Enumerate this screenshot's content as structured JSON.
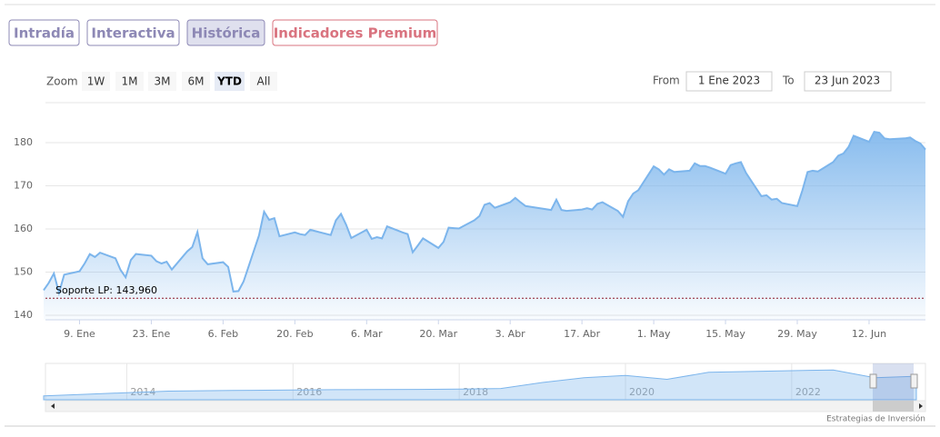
{
  "tabs": [
    "Intradía",
    "Interactiva",
    "Histórica",
    "Indicadores Premium"
  ],
  "active_tab": 2,
  "zoom": {
    "label": "Zoom",
    "buttons": [
      "1W",
      "1M",
      "3M",
      "6M",
      "YTD",
      "All"
    ],
    "selected": 4
  },
  "range": {
    "from_label": "From",
    "from": "1 Ene 2023",
    "to_label": "To",
    "to": "23 Jun 2023"
  },
  "credit": "Estrategias de Inversión",
  "chart_data": {
    "type": "area",
    "color": "#7cb5ec",
    "grid": true,
    "x": [
      "2023-01-02",
      "2023-01-03",
      "2023-01-04",
      "2023-01-05",
      "2023-01-06",
      "2023-01-09",
      "2023-01-10",
      "2023-01-11",
      "2023-01-12",
      "2023-01-13",
      "2023-01-16",
      "2023-01-17",
      "2023-01-18",
      "2023-01-19",
      "2023-01-20",
      "2023-01-23",
      "2023-01-24",
      "2023-01-25",
      "2023-01-26",
      "2023-01-27",
      "2023-01-30",
      "2023-01-31",
      "2023-02-01",
      "2023-02-02",
      "2023-02-03",
      "2023-02-06",
      "2023-02-07",
      "2023-02-08",
      "2023-02-09",
      "2023-02-10",
      "2023-02-13",
      "2023-02-14",
      "2023-02-15",
      "2023-02-16",
      "2023-02-17",
      "2023-02-20",
      "2023-02-21",
      "2023-02-22",
      "2023-02-23",
      "2023-02-24",
      "2023-02-27",
      "2023-02-28",
      "2023-03-01",
      "2023-03-02",
      "2023-03-03",
      "2023-03-06",
      "2023-03-07",
      "2023-03-08",
      "2023-03-09",
      "2023-03-10",
      "2023-03-13",
      "2023-03-14",
      "2023-03-15",
      "2023-03-16",
      "2023-03-17",
      "2023-03-20",
      "2023-03-21",
      "2023-03-22",
      "2023-03-23",
      "2023-03-24",
      "2023-03-27",
      "2023-03-28",
      "2023-03-29",
      "2023-03-30",
      "2023-03-31",
      "2023-04-03",
      "2023-04-04",
      "2023-04-05",
      "2023-04-06",
      "2023-04-11",
      "2023-04-12",
      "2023-04-13",
      "2023-04-14",
      "2023-04-17",
      "2023-04-18",
      "2023-04-19",
      "2023-04-20",
      "2023-04-21",
      "2023-04-24",
      "2023-04-25",
      "2023-04-26",
      "2023-04-27",
      "2023-04-28",
      "2023-05-01",
      "2023-05-02",
      "2023-05-03",
      "2023-05-04",
      "2023-05-05",
      "2023-05-08",
      "2023-05-09",
      "2023-05-10",
      "2023-05-11",
      "2023-05-12",
      "2023-05-15",
      "2023-05-16",
      "2023-05-17",
      "2023-05-18",
      "2023-05-19",
      "2023-05-22",
      "2023-05-23",
      "2023-05-24",
      "2023-05-25",
      "2023-05-26",
      "2023-05-29",
      "2023-05-30",
      "2023-05-31",
      "2023-06-01",
      "2023-06-02",
      "2023-06-05",
      "2023-06-06",
      "2023-06-07",
      "2023-06-08",
      "2023-06-09",
      "2023-06-12",
      "2023-06-13",
      "2023-06-14",
      "2023-06-15",
      "2023-06-16",
      "2023-06-19",
      "2023-06-20",
      "2023-06-21",
      "2023-06-22",
      "2023-06-23"
    ],
    "values": [
      145.8,
      147.5,
      149.7,
      145.2,
      149.4,
      150.2,
      152,
      154.2,
      153.5,
      154.5,
      153.2,
      150.5,
      148.8,
      152.8,
      154.2,
      153.8,
      152.5,
      152,
      152.4,
      150.6,
      154.8,
      155.8,
      159.3,
      153.2,
      151.8,
      152.3,
      151.2,
      145.5,
      145.6,
      147.8,
      158.5,
      164,
      162.1,
      162.5,
      158.3,
      159.2,
      158.8,
      158.6,
      159.8,
      159.5,
      158.6,
      162,
      163.5,
      161,
      157.9,
      159.8,
      157.7,
      158.1,
      157.8,
      160.6,
      159.2,
      158.8,
      154.6,
      156.2,
      157.8,
      155.6,
      157,
      160.3,
      160.2,
      160.1,
      162,
      163,
      165.6,
      166,
      164.9,
      166.2,
      167.2,
      166.2,
      165.3,
      164.4,
      166.8,
      164.4,
      164.2,
      164.5,
      164.8,
      164.5,
      165.8,
      166.2,
      164.2,
      162.8,
      166.4,
      168.2,
      169,
      174.5,
      173.8,
      172.6,
      173.8,
      173.2,
      173.5,
      175.2,
      174.6,
      174.6,
      174.2,
      172.8,
      174.8,
      175.2,
      175.5,
      173,
      167.6,
      167.8,
      166.8,
      167,
      166,
      165.3,
      169,
      173.2,
      173.5,
      173.3,
      175.5,
      177,
      177.5,
      179,
      181.6,
      180.2,
      182.5,
      182.3,
      181,
      180.8,
      181,
      181.2,
      180.4,
      179.8,
      178.4
    ],
    "xlim": [
      "2023-01-02",
      "2023-06-23"
    ],
    "xticks": [
      {
        "value": "2023-01-09",
        "label": "9. Ene"
      },
      {
        "value": "2023-01-23",
        "label": "23. Ene"
      },
      {
        "value": "2023-02-06",
        "label": "6. Feb"
      },
      {
        "value": "2023-02-20",
        "label": "20. Feb"
      },
      {
        "value": "2023-03-06",
        "label": "6. Mar"
      },
      {
        "value": "2023-03-20",
        "label": "20. Mar"
      },
      {
        "value": "2023-04-03",
        "label": "3. Abr"
      },
      {
        "value": "2023-04-17",
        "label": "17. Abr"
      },
      {
        "value": "2023-05-01",
        "label": "1. May"
      },
      {
        "value": "2023-05-15",
        "label": "15. May"
      },
      {
        "value": "2023-05-29",
        "label": "29. May"
      },
      {
        "value": "2023-06-12",
        "label": "12. Jun"
      }
    ],
    "ylim": [
      139,
      189
    ],
    "yticks": [
      140,
      150,
      160,
      170,
      180
    ],
    "annotations": [
      {
        "text": "Soporte LP: 143,960",
        "value": 143.96,
        "color": "#8b1a2b"
      }
    ],
    "navigator": {
      "x": [
        2013,
        2013.5,
        2014,
        2014.5,
        2015,
        2015.5,
        2016,
        2016.5,
        2017,
        2017.5,
        2018,
        2018.5,
        2019,
        2019.5,
        2020,
        2020.5,
        2021,
        2021.5,
        2022,
        2022.5,
        2023,
        2023.5
      ],
      "values": [
        25,
        35,
        45,
        55,
        58,
        60,
        62,
        64,
        65,
        66,
        68,
        72,
        110,
        140,
        155,
        130,
        175,
        180,
        185,
        190,
        140,
        150
      ],
      "xlim": [
        2013,
        2023.5
      ],
      "ylim": [
        0,
        220
      ],
      "xticks": [
        2014,
        2016,
        2018,
        2020,
        2022
      ]
    }
  }
}
